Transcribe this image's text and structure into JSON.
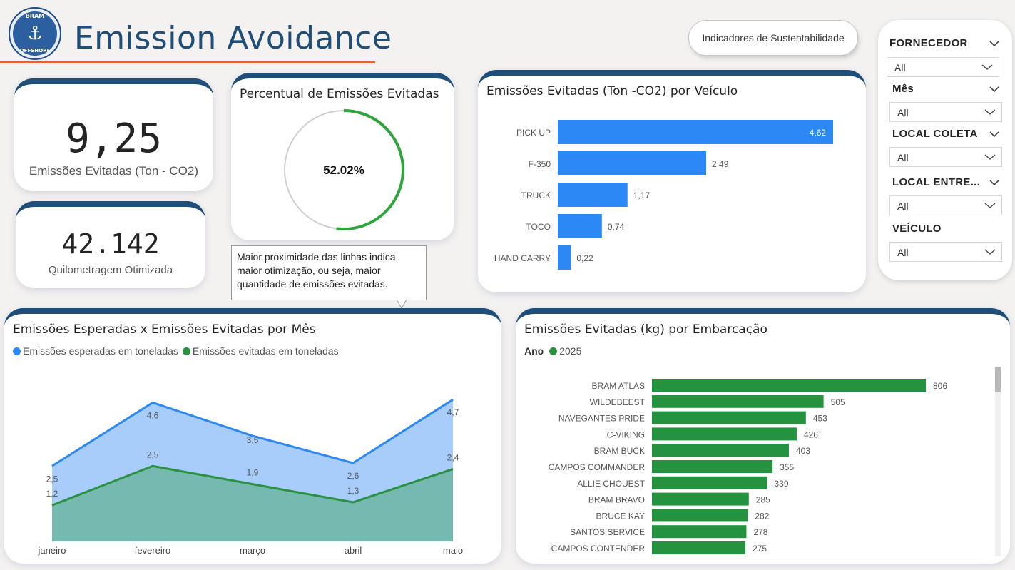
{
  "header": {
    "title": "Emission Avoidance",
    "logo_text_top": "BRAM",
    "logo_text_bottom": "OFFSHORE",
    "nav_button": "Indicadores de Sustentabilidade"
  },
  "kpis": {
    "emissions": {
      "value": "9,25",
      "label": "Emissões Evitadas (Ton - CO2)"
    },
    "km": {
      "value": "42.142",
      "label": "Quilometragem Otimizada"
    }
  },
  "gauge": {
    "title": "Percentual de Emissões Evitadas",
    "value_label": "52.02%",
    "fraction": 0.5202,
    "color": "#2ea53c"
  },
  "tooltip": {
    "text": "Maior proximidade das linhas indica maior otimização, ou seja, maior quantidade de emissões evitadas."
  },
  "vehicle_chart": {
    "title": "Emissões Evitadas (Ton -CO2) por Veículo",
    "color": "#2b88f5",
    "chart_data": {
      "type": "bar",
      "categories": [
        "PICK UP",
        "F-350",
        "TRUCK",
        "TOCO",
        "HAND CARRY"
      ],
      "values": [
        4.62,
        2.49,
        1.17,
        0.74,
        0.22
      ],
      "labels": [
        "4,62",
        "2,49",
        "1,17",
        "0,74",
        "0,22"
      ]
    }
  },
  "monthly_chart": {
    "title": "Emissões Esperadas x Emissões Evitadas por Mês",
    "legend": [
      "Emissões esperadas em toneladas",
      "Emissões evitadas em toneladas"
    ],
    "colors": [
      "#2b88f5",
      "#2a9141"
    ],
    "chart_data": {
      "type": "area",
      "categories": [
        "janeiro",
        "fevereiro",
        "março",
        "abril",
        "maio"
      ],
      "series": [
        {
          "name": "Emissões esperadas em toneladas",
          "values": [
            2.5,
            4.6,
            3.5,
            2.6,
            4.7
          ],
          "labels": [
            "2,5",
            "4,6",
            "3,5",
            "2,6",
            "4,7"
          ]
        },
        {
          "name": "Emissões evitadas em toneladas",
          "values": [
            1.2,
            2.5,
            1.9,
            1.3,
            2.4
          ],
          "labels": [
            "1,2",
            "2,5",
            "1,9",
            "1,3",
            "2,4"
          ]
        }
      ]
    }
  },
  "vessel_chart": {
    "title": "Emissões Evitadas (kg) por Embarcação",
    "legend_title": "Ano",
    "legend_item": "2025",
    "color": "#25923f",
    "chart_data": {
      "type": "bar",
      "categories": [
        "BRAM ATLAS",
        "WILDEBEEST",
        "NAVEGANTES PRIDE",
        "C-VIKING",
        "BRAM BUCK",
        "CAMPOS COMMANDER",
        "ALLIE CHOUEST",
        "BRAM BRAVO",
        "BRUCE KAY",
        "SANTOS SERVICE",
        "CAMPOS CONTENDER"
      ],
      "values": [
        806,
        505,
        453,
        426,
        403,
        355,
        339,
        285,
        282,
        278,
        275
      ]
    }
  },
  "slicers": [
    {
      "label": "FORNECEDOR",
      "value": "All"
    },
    {
      "label": "Mês",
      "value": "All"
    },
    {
      "label": "LOCAL COLETA",
      "value": "All"
    },
    {
      "label": "LOCAL ENTRE...",
      "value": "All"
    },
    {
      "label": "VEÍCULO",
      "value": "All"
    }
  ]
}
